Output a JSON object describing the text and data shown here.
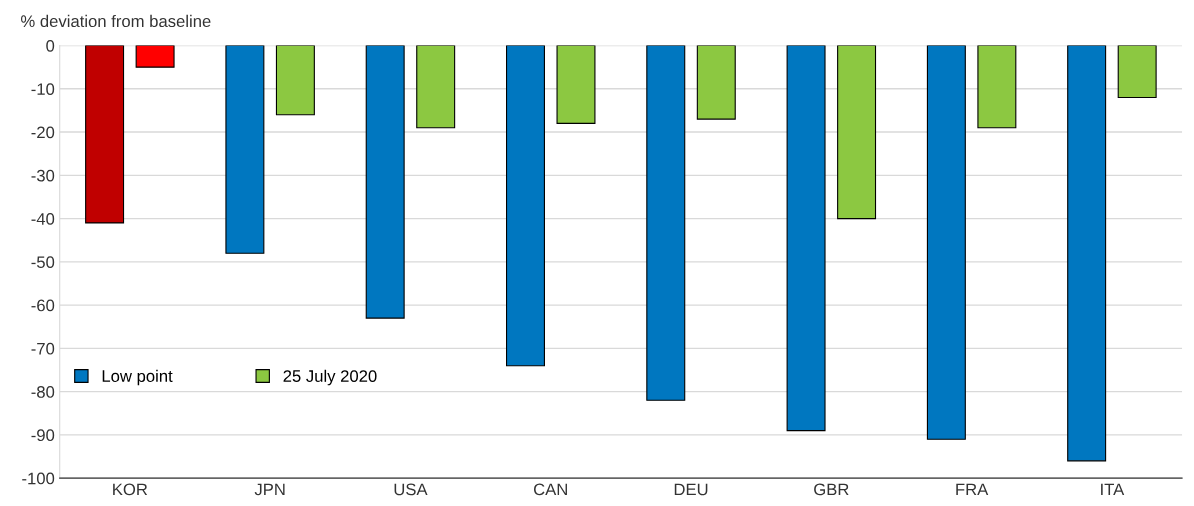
{
  "chart_data": {
    "type": "bar",
    "ylabel": "% deviation from baseline",
    "categories": [
      "KOR",
      "JPN",
      "USA",
      "CAN",
      "DEU",
      "GBR",
      "FRA",
      "ITA"
    ],
    "series": [
      {
        "name": "Low point",
        "color": "#0077c0",
        "colors": [
          "#c00000",
          "#0077c0",
          "#0077c0",
          "#0077c0",
          "#0077c0",
          "#0077c0",
          "#0077c0",
          "#0077c0"
        ],
        "values": [
          -41,
          -48,
          -63,
          -74,
          -82,
          -89,
          -91,
          -96
        ]
      },
      {
        "name": "25 July 2020",
        "color": "#8cc841",
        "colors": [
          "#ff0000",
          "#8cc841",
          "#8cc841",
          "#8cc841",
          "#8cc841",
          "#8cc841",
          "#8cc841",
          "#8cc841"
        ],
        "values": [
          -5,
          -16,
          -19,
          -18,
          -17,
          -40,
          -19,
          -12
        ]
      }
    ],
    "ylim": [
      -100,
      0
    ],
    "yticks": [
      -100,
      -90,
      -80,
      -70,
      -60,
      -50,
      -40,
      -30,
      -20,
      -10,
      0
    ],
    "grid": "y",
    "legend": "bottom left"
  }
}
